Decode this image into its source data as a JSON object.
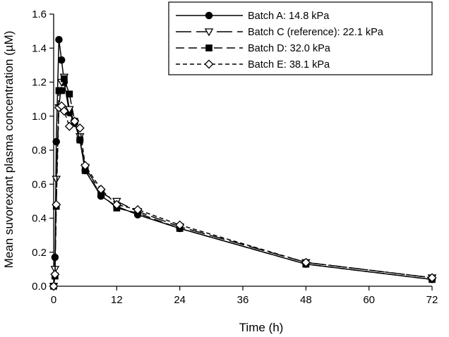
{
  "chart_data": {
    "type": "line",
    "title": "",
    "xlabel": "Time (h)",
    "ylabel": "Mean suvorexant plasma concentration (µM)",
    "xlim": [
      0,
      72
    ],
    "ylim": [
      0,
      1.6
    ],
    "xticks": [
      "0",
      "12",
      "24",
      "36",
      "48",
      "60",
      "72"
    ],
    "yticks": [
      "0.0",
      "0.2",
      "0.4",
      "0.6",
      "0.8",
      "1.0",
      "1.2",
      "1.4",
      "1.6"
    ],
    "grid": false,
    "legend_position": "top-right",
    "series": [
      {
        "name": "Batch A: 14.8 kPa",
        "marker": "filled-circle",
        "line_style": "solid",
        "color": "#000000",
        "x": [
          0,
          0.25,
          0.5,
          1,
          1.5,
          2,
          3,
          4,
          5,
          6,
          9,
          12,
          16,
          24,
          48,
          72
        ],
        "y": [
          0.0,
          0.17,
          0.85,
          1.45,
          1.33,
          1.2,
          1.02,
          0.96,
          0.86,
          0.68,
          0.53,
          0.47,
          0.42,
          0.34,
          0.13,
          0.04
        ]
      },
      {
        "name": "Batch C (reference): 22.1 kPa",
        "marker": "open-triangle-down",
        "line_style": "long-dash",
        "color": "#000000",
        "x": [
          0,
          0.25,
          0.5,
          1,
          1.5,
          2,
          3,
          4,
          5,
          6,
          9,
          12,
          16,
          24,
          48,
          72
        ],
        "y": [
          0.0,
          0.1,
          0.63,
          1.05,
          1.2,
          1.23,
          1.04,
          0.96,
          0.88,
          0.7,
          0.55,
          0.5,
          0.44,
          0.35,
          0.14,
          0.05
        ]
      },
      {
        "name": "Batch D: 32.0 kPa",
        "marker": "filled-square",
        "line_style": "medium-dash",
        "color": "#000000",
        "x": [
          0,
          0.25,
          0.5,
          1,
          1.5,
          2,
          3,
          4,
          5,
          6,
          9,
          12,
          16,
          24,
          48,
          72
        ],
        "y": [
          0.0,
          0.06,
          0.47,
          1.15,
          1.15,
          1.22,
          1.13,
          0.97,
          0.86,
          0.68,
          0.54,
          0.46,
          0.43,
          0.34,
          0.13,
          0.04
        ]
      },
      {
        "name": "Batch E: 38.1 kPa",
        "marker": "open-diamond",
        "line_style": "short-dash",
        "color": "#000000",
        "x": [
          0,
          0.25,
          0.5,
          1,
          1.5,
          2,
          3,
          4,
          5,
          6,
          9,
          12,
          16,
          24,
          48,
          72
        ],
        "y": [
          0.0,
          0.07,
          0.48,
          1.05,
          1.06,
          1.03,
          0.94,
          0.97,
          0.93,
          0.71,
          0.57,
          0.48,
          0.45,
          0.36,
          0.14,
          0.05
        ]
      }
    ]
  }
}
